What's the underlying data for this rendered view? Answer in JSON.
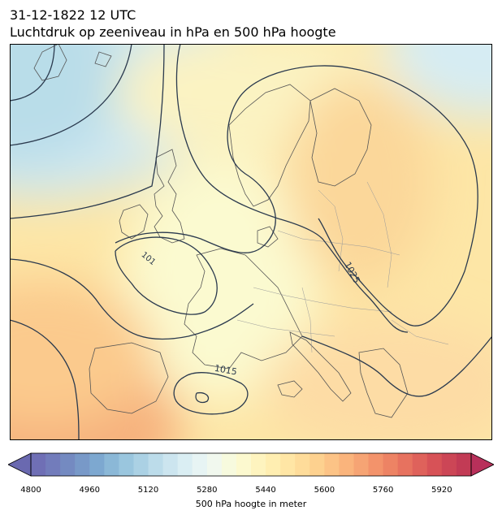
{
  "title": {
    "line1": "31-12-1822 12 UTC",
    "line2": "Luchtdruk op zeeniveau in hPa en 500 hPa hoogte"
  },
  "map": {
    "region": "Europe",
    "fill_variable": "500 hPa geopotential height (m)",
    "contour_variable": "mean sea level pressure (hPa)",
    "isobar_labels": [
      {
        "id": "isobar-label-1015",
        "text": "1015"
      },
      {
        "id": "isobar-label-1025",
        "text": "1025"
      },
      {
        "id": "isobar-label-1017-partial",
        "text": "101"
      }
    ],
    "colors": {
      "land_border": "#555555",
      "isobar": "#2b3a4e",
      "frame": "#000000"
    }
  },
  "colorbar": {
    "label": "500 hPa hoogte in meter",
    "ticks": [
      "4800",
      "4960",
      "5120",
      "5280",
      "5440",
      "5600",
      "5760",
      "5920"
    ],
    "min": 4800,
    "max": 6000,
    "step": 40,
    "extend": "both",
    "colors": [
      "#6f6fb5",
      "#7489c0",
      "#7ba6cf",
      "#97c4dd",
      "#b8d9e8",
      "#d6ecf3",
      "#eef7f4",
      "#fbfbd6",
      "#fff2b8",
      "#ffe3a0",
      "#fdcd8c",
      "#f9b07a",
      "#f29069",
      "#e6705e",
      "#d65157",
      "#c23b55"
    ]
  }
}
